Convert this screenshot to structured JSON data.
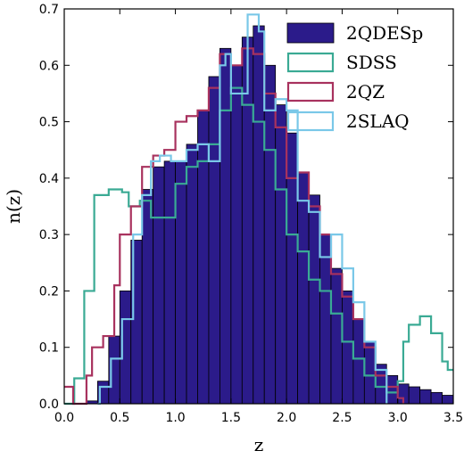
{
  "chart_data": {
    "type": "histogram",
    "xlabel": "z",
    "ylabel": "n(z)",
    "xlim": [
      0.0,
      3.5
    ],
    "ylim": [
      0.0,
      0.7
    ],
    "xticks": [
      "0.0",
      "0.5",
      "1.0",
      "1.5",
      "2.0",
      "2.5",
      "3.0",
      "3.5"
    ],
    "yticks": [
      "0.0",
      "0.1",
      "0.2",
      "0.3",
      "0.4",
      "0.5",
      "0.6",
      "0.7"
    ],
    "grid": false,
    "legend_position": "top-right",
    "bin_edges": [
      0.0,
      0.1,
      0.2,
      0.3,
      0.4,
      0.5,
      0.6,
      0.7,
      0.8,
      0.9,
      1.0,
      1.1,
      1.2,
      1.3,
      1.4,
      1.5,
      1.6,
      1.7,
      1.8,
      1.9,
      2.0,
      2.1,
      2.2,
      2.3,
      2.4,
      2.5,
      2.6,
      2.7,
      2.8,
      2.9,
      3.0,
      3.1,
      3.2,
      3.3,
      3.4,
      3.5
    ],
    "series": [
      {
        "name": "2QDESp",
        "style": "filled",
        "color": "#2b1b8a",
        "edge_color": "#000000",
        "values": [
          0.0,
          0.0,
          0.01,
          0.04,
          0.12,
          0.2,
          0.3,
          0.4,
          0.42,
          0.43,
          0.43,
          0.46,
          0.52,
          0.58,
          0.62,
          0.6,
          0.65,
          0.67,
          0.6,
          0.54,
          0.48,
          0.42,
          0.38,
          0.3,
          0.25,
          0.2,
          0.15,
          0.11,
          0.07,
          0.05,
          0.03,
          0.03,
          0.02,
          0.02,
          0.01
        ],
        "precise_bins": [
          {
            "x0": 0.2,
            "x1": 0.3,
            "y": 0.005
          },
          {
            "x0": 0.3,
            "x1": 0.4,
            "y": 0.04
          },
          {
            "x0": 0.4,
            "x1": 0.5,
            "y": 0.12
          },
          {
            "x0": 0.5,
            "x1": 0.6,
            "y": 0.2
          },
          {
            "x0": 0.6,
            "x1": 0.7,
            "y": 0.29
          },
          {
            "x0": 0.7,
            "x1": 0.8,
            "y": 0.38
          },
          {
            "x0": 0.8,
            "x1": 0.9,
            "y": 0.42
          },
          {
            "x0": 0.9,
            "x1": 1.0,
            "y": 0.43
          },
          {
            "x0": 1.0,
            "x1": 1.1,
            "y": 0.43
          },
          {
            "x0": 1.1,
            "x1": 1.2,
            "y": 0.46
          },
          {
            "x0": 1.2,
            "x1": 1.3,
            "y": 0.52
          },
          {
            "x0": 1.3,
            "x1": 1.4,
            "y": 0.58
          },
          {
            "x0": 1.4,
            "x1": 1.5,
            "y": 0.63
          },
          {
            "x0": 1.5,
            "x1": 1.6,
            "y": 0.6
          },
          {
            "x0": 1.6,
            "x1": 1.7,
            "y": 0.65
          },
          {
            "x0": 1.7,
            "x1": 1.8,
            "y": 0.67
          },
          {
            "x0": 1.8,
            "x1": 1.9,
            "y": 0.6
          },
          {
            "x0": 1.9,
            "x1": 2.0,
            "y": 0.53
          },
          {
            "x0": 2.0,
            "x1": 2.1,
            "y": 0.48
          },
          {
            "x0": 2.1,
            "x1": 2.2,
            "y": 0.41
          },
          {
            "x0": 2.2,
            "x1": 2.3,
            "y": 0.37
          },
          {
            "x0": 2.3,
            "x1": 2.4,
            "y": 0.3
          },
          {
            "x0": 2.4,
            "x1": 2.5,
            "y": 0.24
          },
          {
            "x0": 2.5,
            "x1": 2.6,
            "y": 0.2
          },
          {
            "x0": 2.6,
            "x1": 2.7,
            "y": 0.15
          },
          {
            "x0": 2.7,
            "x1": 2.8,
            "y": 0.11
          },
          {
            "x0": 2.8,
            "x1": 2.9,
            "y": 0.07
          },
          {
            "x0": 2.9,
            "x1": 3.0,
            "y": 0.05
          },
          {
            "x0": 3.0,
            "x1": 3.1,
            "y": 0.035
          },
          {
            "x0": 3.1,
            "x1": 3.2,
            "y": 0.03
          },
          {
            "x0": 3.2,
            "x1": 3.3,
            "y": 0.025
          },
          {
            "x0": 3.3,
            "x1": 3.4,
            "y": 0.02
          },
          {
            "x0": 3.4,
            "x1": 3.5,
            "y": 0.015
          }
        ]
      },
      {
        "name": "SDSS",
        "style": "step",
        "color": "#3aaa94",
        "values": [
          0.0,
          0.05,
          0.2,
          0.37,
          0.38,
          0.37,
          0.35,
          0.35,
          0.33,
          0.33,
          0.37,
          0.4,
          0.42,
          0.45,
          0.52,
          0.56,
          0.53,
          0.5,
          0.45,
          0.38,
          0.3,
          0.25,
          0.2,
          0.17,
          0.14,
          0.1,
          0.07,
          0.05,
          0.03,
          0.02,
          0.03,
          0.1,
          0.14,
          0.16,
          0.1
        ],
        "steps": [
          [
            0.0,
            0.0
          ],
          [
            0.09,
            0.0
          ],
          [
            0.09,
            0.045
          ],
          [
            0.18,
            0.045
          ],
          [
            0.18,
            0.2
          ],
          [
            0.27,
            0.2
          ],
          [
            0.27,
            0.37
          ],
          [
            0.4,
            0.37
          ],
          [
            0.4,
            0.38
          ],
          [
            0.52,
            0.38
          ],
          [
            0.52,
            0.375
          ],
          [
            0.58,
            0.375
          ],
          [
            0.58,
            0.35
          ],
          [
            0.68,
            0.35
          ],
          [
            0.68,
            0.36
          ],
          [
            0.78,
            0.36
          ],
          [
            0.78,
            0.33
          ],
          [
            1.0,
            0.33
          ],
          [
            1.0,
            0.39
          ],
          [
            1.1,
            0.39
          ],
          [
            1.1,
            0.42
          ],
          [
            1.2,
            0.42
          ],
          [
            1.2,
            0.43
          ],
          [
            1.3,
            0.43
          ],
          [
            1.3,
            0.46
          ],
          [
            1.4,
            0.46
          ],
          [
            1.4,
            0.52
          ],
          [
            1.5,
            0.52
          ],
          [
            1.5,
            0.56
          ],
          [
            1.6,
            0.56
          ],
          [
            1.6,
            0.53
          ],
          [
            1.7,
            0.53
          ],
          [
            1.7,
            0.5
          ],
          [
            1.8,
            0.5
          ],
          [
            1.8,
            0.45
          ],
          [
            1.9,
            0.45
          ],
          [
            1.9,
            0.38
          ],
          [
            2.0,
            0.38
          ],
          [
            2.0,
            0.3
          ],
          [
            2.1,
            0.3
          ],
          [
            2.1,
            0.27
          ],
          [
            2.2,
            0.27
          ],
          [
            2.2,
            0.22
          ],
          [
            2.3,
            0.22
          ],
          [
            2.3,
            0.2
          ],
          [
            2.4,
            0.2
          ],
          [
            2.4,
            0.16
          ],
          [
            2.5,
            0.16
          ],
          [
            2.5,
            0.11
          ],
          [
            2.6,
            0.11
          ],
          [
            2.6,
            0.08
          ],
          [
            2.7,
            0.08
          ],
          [
            2.7,
            0.05
          ],
          [
            2.8,
            0.05
          ],
          [
            2.8,
            0.03
          ],
          [
            2.9,
            0.03
          ],
          [
            2.9,
            0.02
          ],
          [
            3.0,
            0.02
          ],
          [
            3.0,
            0.04
          ],
          [
            3.05,
            0.04
          ],
          [
            3.05,
            0.11
          ],
          [
            3.1,
            0.11
          ],
          [
            3.1,
            0.14
          ],
          [
            3.2,
            0.14
          ],
          [
            3.2,
            0.155
          ],
          [
            3.3,
            0.155
          ],
          [
            3.3,
            0.125
          ],
          [
            3.4,
            0.125
          ],
          [
            3.4,
            0.075
          ],
          [
            3.45,
            0.075
          ],
          [
            3.45,
            0.06
          ],
          [
            3.5,
            0.06
          ]
        ]
      },
      {
        "name": "2QZ",
        "style": "step",
        "color": "#a8325e",
        "values": [
          0.03,
          0.0,
          0.05,
          0.1,
          0.21,
          0.3,
          0.35,
          0.42,
          0.44,
          0.45,
          0.5,
          0.52,
          0.52,
          0.56,
          0.62,
          0.6,
          0.6,
          0.62,
          0.55,
          0.49,
          0.4,
          0.4,
          0.35,
          0.3,
          0.23,
          0.19,
          0.15,
          0.1,
          0.05,
          0.03,
          0.01,
          0.0,
          0.0,
          0.0,
          0.0
        ],
        "steps": [
          [
            0.0,
            0.03
          ],
          [
            0.08,
            0.03
          ],
          [
            0.08,
            0.0
          ],
          [
            0.2,
            0.0
          ],
          [
            0.2,
            0.05
          ],
          [
            0.25,
            0.05
          ],
          [
            0.25,
            0.1
          ],
          [
            0.35,
            0.1
          ],
          [
            0.35,
            0.12
          ],
          [
            0.45,
            0.12
          ],
          [
            0.45,
            0.21
          ],
          [
            0.5,
            0.21
          ],
          [
            0.5,
            0.3
          ],
          [
            0.6,
            0.3
          ],
          [
            0.6,
            0.35
          ],
          [
            0.7,
            0.35
          ],
          [
            0.7,
            0.42
          ],
          [
            0.8,
            0.42
          ],
          [
            0.8,
            0.44
          ],
          [
            0.9,
            0.44
          ],
          [
            0.9,
            0.45
          ],
          [
            1.0,
            0.45
          ],
          [
            1.0,
            0.5
          ],
          [
            1.1,
            0.5
          ],
          [
            1.1,
            0.51
          ],
          [
            1.2,
            0.51
          ],
          [
            1.2,
            0.52
          ],
          [
            1.3,
            0.52
          ],
          [
            1.3,
            0.56
          ],
          [
            1.4,
            0.56
          ],
          [
            1.4,
            0.62
          ],
          [
            1.5,
            0.62
          ],
          [
            1.5,
            0.6
          ],
          [
            1.6,
            0.6
          ],
          [
            1.6,
            0.63
          ],
          [
            1.7,
            0.63
          ],
          [
            1.7,
            0.62
          ],
          [
            1.8,
            0.62
          ],
          [
            1.8,
            0.55
          ],
          [
            1.9,
            0.55
          ],
          [
            1.9,
            0.49
          ],
          [
            2.0,
            0.49
          ],
          [
            2.0,
            0.4
          ],
          [
            2.1,
            0.4
          ],
          [
            2.1,
            0.41
          ],
          [
            2.2,
            0.41
          ],
          [
            2.2,
            0.35
          ],
          [
            2.3,
            0.35
          ],
          [
            2.3,
            0.3
          ],
          [
            2.4,
            0.3
          ],
          [
            2.4,
            0.23
          ],
          [
            2.5,
            0.23
          ],
          [
            2.5,
            0.19
          ],
          [
            2.6,
            0.19
          ],
          [
            2.6,
            0.15
          ],
          [
            2.7,
            0.15
          ],
          [
            2.7,
            0.1
          ],
          [
            2.8,
            0.1
          ],
          [
            2.8,
            0.05
          ],
          [
            2.9,
            0.05
          ],
          [
            2.9,
            0.03
          ],
          [
            3.0,
            0.03
          ],
          [
            3.0,
            0.01
          ],
          [
            3.05,
            0.01
          ],
          [
            3.05,
            0.0
          ]
        ]
      },
      {
        "name": "2SLAQ",
        "style": "step",
        "color": "#7ac8e8",
        "values": [
          0.0,
          0.0,
          0.0,
          0.0,
          0.05,
          0.08,
          0.15,
          0.3,
          0.43,
          0.44,
          0.43,
          0.45,
          0.46,
          0.45,
          0.62,
          0.55,
          0.55,
          0.68,
          0.52,
          0.53,
          0.52,
          0.36,
          0.34,
          0.26,
          0.3,
          0.24,
          0.18,
          0.11,
          0.06,
          0.03,
          0.0,
          0.0,
          0.0,
          0.0,
          0.0
        ],
        "steps": [
          [
            0.3,
            0.0
          ],
          [
            0.32,
            0.0
          ],
          [
            0.32,
            0.03
          ],
          [
            0.42,
            0.03
          ],
          [
            0.42,
            0.08
          ],
          [
            0.52,
            0.08
          ],
          [
            0.52,
            0.15
          ],
          [
            0.62,
            0.15
          ],
          [
            0.62,
            0.3
          ],
          [
            0.7,
            0.3
          ],
          [
            0.7,
            0.37
          ],
          [
            0.78,
            0.37
          ],
          [
            0.78,
            0.43
          ],
          [
            0.86,
            0.43
          ],
          [
            0.86,
            0.44
          ],
          [
            0.96,
            0.44
          ],
          [
            0.96,
            0.43
          ],
          [
            1.1,
            0.43
          ],
          [
            1.1,
            0.45
          ],
          [
            1.2,
            0.45
          ],
          [
            1.2,
            0.46
          ],
          [
            1.3,
            0.46
          ],
          [
            1.3,
            0.43
          ],
          [
            1.4,
            0.43
          ],
          [
            1.4,
            0.6
          ],
          [
            1.45,
            0.6
          ],
          [
            1.45,
            0.62
          ],
          [
            1.5,
            0.62
          ],
          [
            1.5,
            0.55
          ],
          [
            1.65,
            0.55
          ],
          [
            1.65,
            0.69
          ],
          [
            1.75,
            0.69
          ],
          [
            1.75,
            0.66
          ],
          [
            1.8,
            0.66
          ],
          [
            1.8,
            0.52
          ],
          [
            1.9,
            0.52
          ],
          [
            1.9,
            0.54
          ],
          [
            2.0,
            0.54
          ],
          [
            2.0,
            0.52
          ],
          [
            2.1,
            0.52
          ],
          [
            2.1,
            0.36
          ],
          [
            2.2,
            0.36
          ],
          [
            2.2,
            0.34
          ],
          [
            2.3,
            0.34
          ],
          [
            2.3,
            0.26
          ],
          [
            2.4,
            0.26
          ],
          [
            2.4,
            0.3
          ],
          [
            2.5,
            0.3
          ],
          [
            2.5,
            0.24
          ],
          [
            2.6,
            0.24
          ],
          [
            2.6,
            0.18
          ],
          [
            2.7,
            0.18
          ],
          [
            2.7,
            0.11
          ],
          [
            2.8,
            0.11
          ],
          [
            2.8,
            0.06
          ],
          [
            2.9,
            0.06
          ],
          [
            2.9,
            0.0
          ]
        ]
      }
    ]
  }
}
